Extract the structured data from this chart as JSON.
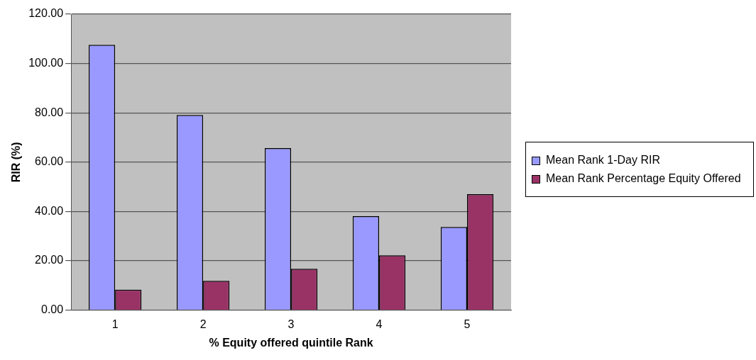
{
  "chart_data": {
    "type": "bar",
    "xlabel": "% Equity offered quintile Rank",
    "ylabel": "RIR (%)",
    "categories": [
      "1",
      "2",
      "3",
      "4",
      "5"
    ],
    "series": [
      {
        "name": "Mean Rank 1-Day RIR",
        "color": "#9999ff",
        "values": [
          107.6,
          79.1,
          65.7,
          38.1,
          33.7
        ]
      },
      {
        "name": "Mean Rank Percentage Equity Offered",
        "color": "#993366",
        "values": [
          8.3,
          11.9,
          16.8,
          22.2,
          47.0
        ]
      }
    ],
    "ylim": [
      0,
      120
    ],
    "yticks": [
      {
        "value": 0,
        "label": "0.00"
      },
      {
        "value": 20,
        "label": "20.00"
      },
      {
        "value": 40,
        "label": "40.00"
      },
      {
        "value": 60,
        "label": "60.00"
      },
      {
        "value": 80,
        "label": "80.00"
      },
      {
        "value": 100,
        "label": "100.00"
      },
      {
        "value": 120,
        "label": "120.00"
      }
    ],
    "grid": "y",
    "legend": "right"
  }
}
